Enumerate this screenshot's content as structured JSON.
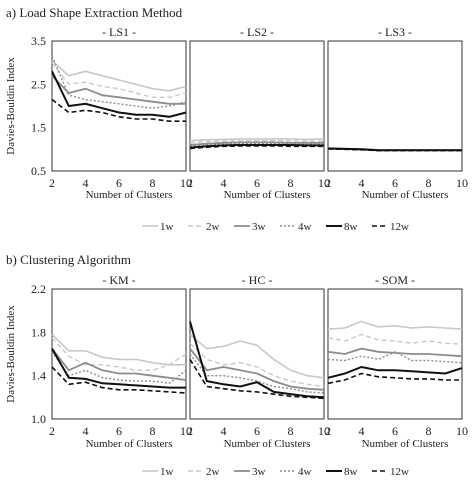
{
  "figure": {
    "section_a_label": "a) Load Shape Extraction Method",
    "section_b_label": "b) Clustering Algorithm"
  },
  "legend": [
    {
      "name": "1w",
      "color": "#c8c8c8",
      "dash": "solid",
      "width": 1.6
    },
    {
      "name": "2w",
      "color": "#c8c8c8",
      "dash": "dashed",
      "width": 1.4
    },
    {
      "name": "3w",
      "color": "#8c8c8c",
      "dash": "solid",
      "width": 1.8
    },
    {
      "name": "4w",
      "color": "#8c8c8c",
      "dash": "dotted",
      "width": 1.4
    },
    {
      "name": "8w",
      "color": "#111111",
      "dash": "solid",
      "width": 2.0
    },
    {
      "name": "12w",
      "color": "#111111",
      "dash": "dashed",
      "width": 1.6
    }
  ],
  "chart_data": [
    {
      "type": "line",
      "group": "a",
      "xlabel": "Number of Clusters",
      "ylabel": "Davies-Bouldin Index",
      "ylim": [
        0.5,
        3.5
      ],
      "yticks": [
        "0.5",
        "1.5",
        "2.5",
        "3.5"
      ],
      "xlim": [
        2,
        10
      ],
      "xticks": [
        "2",
        "4",
        "6",
        "8",
        "10"
      ],
      "x": [
        2,
        3,
        4,
        5,
        6,
        7,
        8,
        9,
        10
      ],
      "panels": [
        {
          "title": "- LS1 -",
          "series": [
            {
              "name": "1w",
              "values": [
                3.05,
                2.7,
                2.8,
                2.7,
                2.6,
                2.5,
                2.4,
                2.35,
                2.45
              ]
            },
            {
              "name": "2w",
              "values": [
                3.0,
                2.5,
                2.55,
                2.45,
                2.4,
                2.3,
                2.2,
                2.2,
                2.3
              ]
            },
            {
              "name": "3w",
              "values": [
                2.7,
                2.3,
                2.4,
                2.25,
                2.2,
                2.15,
                2.1,
                2.05,
                2.05
              ]
            },
            {
              "name": "4w",
              "values": [
                3.15,
                2.25,
                2.15,
                2.1,
                2.05,
                2.0,
                1.95,
                2.0,
                2.1
              ]
            },
            {
              "name": "8w",
              "values": [
                2.8,
                2.0,
                2.05,
                1.95,
                1.85,
                1.8,
                1.8,
                1.75,
                1.85
              ]
            },
            {
              "name": "12w",
              "values": [
                2.15,
                1.85,
                1.9,
                1.85,
                1.75,
                1.7,
                1.7,
                1.65,
                1.65
              ]
            }
          ]
        },
        {
          "title": "- LS2 -",
          "series": [
            {
              "name": "1w",
              "values": [
                1.2,
                1.22,
                1.23,
                1.24,
                1.24,
                1.24,
                1.24,
                1.23,
                1.24
              ]
            },
            {
              "name": "2w",
              "values": [
                1.15,
                1.18,
                1.19,
                1.2,
                1.2,
                1.2,
                1.2,
                1.19,
                1.19
              ]
            },
            {
              "name": "3w",
              "values": [
                1.1,
                1.13,
                1.15,
                1.16,
                1.16,
                1.16,
                1.15,
                1.15,
                1.15
              ]
            },
            {
              "name": "4w",
              "values": [
                1.07,
                1.1,
                1.12,
                1.13,
                1.13,
                1.13,
                1.13,
                1.12,
                1.12
              ]
            },
            {
              "name": "8w",
              "values": [
                1.04,
                1.07,
                1.09,
                1.1,
                1.1,
                1.1,
                1.1,
                1.09,
                1.09
              ]
            },
            {
              "name": "12w",
              "values": [
                1.02,
                1.05,
                1.07,
                1.08,
                1.08,
                1.08,
                1.07,
                1.07,
                1.07
              ]
            }
          ]
        },
        {
          "title": "- LS3 -",
          "series": [
            {
              "name": "1w",
              "values": [
                1.03,
                1.02,
                1.01,
                0.99,
                0.99,
                0.99,
                0.99,
                0.99,
                0.99
              ]
            },
            {
              "name": "2w",
              "values": [
                1.02,
                1.01,
                1.0,
                0.98,
                0.98,
                0.98,
                0.98,
                0.98,
                0.98
              ]
            },
            {
              "name": "3w",
              "values": [
                1.02,
                1.01,
                1.0,
                0.98,
                0.98,
                0.98,
                0.98,
                0.98,
                0.98
              ]
            },
            {
              "name": "4w",
              "values": [
                1.01,
                1.0,
                0.99,
                0.97,
                0.97,
                0.97,
                0.97,
                0.97,
                0.97
              ]
            },
            {
              "name": "8w",
              "values": [
                1.02,
                1.01,
                1.0,
                0.98,
                0.98,
                0.98,
                0.98,
                0.98,
                0.98
              ]
            },
            {
              "name": "12w",
              "values": [
                1.01,
                1.0,
                0.99,
                0.97,
                0.97,
                0.97,
                0.97,
                0.97,
                0.97
              ]
            }
          ]
        }
      ]
    },
    {
      "type": "line",
      "group": "b",
      "xlabel": "Number of Clusters",
      "ylabel": "Davies-Bouldin Index",
      "ylim": [
        1.0,
        2.2
      ],
      "yticks": [
        "1.0",
        "1.4",
        "1.8",
        "2.2"
      ],
      "xlim": [
        2,
        10
      ],
      "xticks": [
        "2",
        "4",
        "6",
        "8",
        "10"
      ],
      "x": [
        2,
        3,
        4,
        5,
        6,
        7,
        8,
        9,
        10
      ],
      "panels": [
        {
          "title": "- KM -",
          "series": [
            {
              "name": "1w",
              "values": [
                1.78,
                1.63,
                1.63,
                1.57,
                1.55,
                1.55,
                1.52,
                1.5,
                1.5
              ]
            },
            {
              "name": "2w",
              "values": [
                1.75,
                1.58,
                1.5,
                1.5,
                1.48,
                1.45,
                1.45,
                1.5,
                1.6
              ]
            },
            {
              "name": "3w",
              "values": [
                1.65,
                1.45,
                1.52,
                1.45,
                1.42,
                1.42,
                1.4,
                1.38,
                1.36
              ]
            },
            {
              "name": "4w",
              "values": [
                1.62,
                1.4,
                1.45,
                1.38,
                1.36,
                1.35,
                1.35,
                1.33,
                1.45
              ]
            },
            {
              "name": "8w",
              "values": [
                1.65,
                1.38,
                1.37,
                1.33,
                1.32,
                1.31,
                1.3,
                1.29,
                1.29
              ]
            },
            {
              "name": "12w",
              "values": [
                1.48,
                1.32,
                1.34,
                1.29,
                1.27,
                1.27,
                1.26,
                1.25,
                1.24
              ]
            }
          ]
        },
        {
          "title": "- HC -",
          "series": [
            {
              "name": "1w",
              "values": [
                1.78,
                1.65,
                1.67,
                1.72,
                1.68,
                1.55,
                1.45,
                1.4,
                1.38
              ]
            },
            {
              "name": "2w",
              "values": [
                1.7,
                1.55,
                1.5,
                1.52,
                1.48,
                1.4,
                1.35,
                1.32,
                1.3
              ]
            },
            {
              "name": "3w",
              "values": [
                1.65,
                1.45,
                1.48,
                1.45,
                1.42,
                1.35,
                1.3,
                1.28,
                1.27
              ]
            },
            {
              "name": "4w",
              "values": [
                1.6,
                1.4,
                1.4,
                1.38,
                1.35,
                1.3,
                1.28,
                1.25,
                1.24
              ]
            },
            {
              "name": "8w",
              "values": [
                1.9,
                1.35,
                1.32,
                1.3,
                1.34,
                1.25,
                1.23,
                1.21,
                1.2
              ]
            },
            {
              "name": "12w",
              "values": [
                1.55,
                1.3,
                1.28,
                1.26,
                1.25,
                1.23,
                1.21,
                1.2,
                1.19
              ]
            }
          ]
        },
        {
          "title": "- SOM -",
          "series": [
            {
              "name": "1w",
              "values": [
                1.83,
                1.84,
                1.9,
                1.85,
                1.86,
                1.84,
                1.85,
                1.84,
                1.83
              ]
            },
            {
              "name": "2w",
              "values": [
                1.75,
                1.72,
                1.78,
                1.73,
                1.72,
                1.7,
                1.72,
                1.7,
                1.69
              ]
            },
            {
              "name": "3w",
              "values": [
                1.62,
                1.6,
                1.65,
                1.62,
                1.61,
                1.6,
                1.6,
                1.59,
                1.58
              ]
            },
            {
              "name": "4w",
              "values": [
                1.55,
                1.54,
                1.58,
                1.55,
                1.62,
                1.54,
                1.54,
                1.53,
                1.52
              ]
            },
            {
              "name": "8w",
              "values": [
                1.38,
                1.42,
                1.48,
                1.45,
                1.45,
                1.44,
                1.43,
                1.42,
                1.47
              ]
            },
            {
              "name": "12w",
              "values": [
                1.33,
                1.36,
                1.42,
                1.39,
                1.38,
                1.37,
                1.37,
                1.36,
                1.36
              ]
            }
          ]
        }
      ]
    }
  ]
}
